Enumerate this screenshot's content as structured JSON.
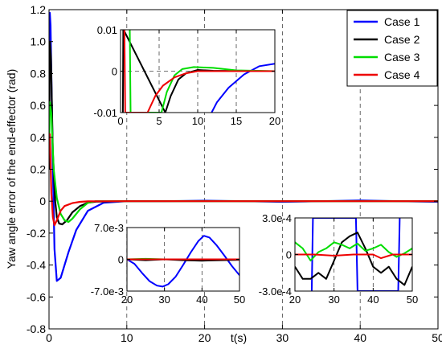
{
  "chart_data": [
    {
      "id": "main",
      "type": "line",
      "ylabel": "Yaw angle error of the end-effector (rad)",
      "xlabel": "t(s)",
      "xlim": [
        0,
        50
      ],
      "ylim": [
        -0.8,
        1.2
      ],
      "xticks": [
        0,
        10,
        20,
        30,
        40,
        50
      ],
      "xtick_labels": [
        "0",
        "10",
        "20",
        "30",
        "40",
        "50"
      ],
      "yticks": [
        -0.8,
        -0.6,
        -0.4,
        -0.2,
        0,
        0.2,
        0.4,
        0.6,
        0.8,
        1.0,
        1.2
      ],
      "ytick_labels": [
        "-0.8",
        "-0.6",
        "-0.4",
        "-0.2",
        "0",
        "0.2",
        "0.4",
        "0.6",
        "0.8",
        "1.0",
        "1.2"
      ],
      "grid": "dashed x only",
      "legend": "top-right",
      "series": [
        {
          "name": "Case 1",
          "color": "#0000ff",
          "x": [
            0,
            0.1,
            0.2,
            0.3,
            0.5,
            0.7,
            1.0,
            1.5,
            2.5,
            3.5,
            5,
            7,
            10,
            15,
            20,
            25,
            30,
            35,
            40,
            45,
            50
          ],
          "y": [
            0.3,
            1.18,
            1.1,
            0.8,
            0.2,
            -0.3,
            -0.5,
            -0.48,
            -0.32,
            -0.18,
            -0.06,
            -0.01,
            0,
            0,
            0.003,
            0,
            -0.004,
            0,
            0.004,
            0,
            -0.004
          ]
        },
        {
          "name": "Case 2",
          "color": "#000000",
          "x": [
            0,
            0.1,
            0.25,
            0.5,
            0.8,
            1.0,
            1.3,
            1.7,
            2.3,
            3,
            4,
            5,
            6,
            10,
            20,
            30,
            40,
            50
          ],
          "y": [
            0.2,
            1.0,
            0.9,
            0.3,
            0.0,
            -0.1,
            -0.14,
            -0.145,
            -0.12,
            -0.07,
            -0.03,
            -0.01,
            -0.003,
            0,
            0,
            0,
            0,
            0
          ]
        },
        {
          "name": "Case 3",
          "color": "#00dd00",
          "x": [
            0,
            0.1,
            0.3,
            0.6,
            1.0,
            1.5,
            2.0,
            2.5,
            3.0,
            4,
            5,
            6,
            10,
            20,
            30,
            40,
            50
          ],
          "y": [
            0.3,
            0.62,
            0.55,
            0.2,
            0.02,
            -0.08,
            -0.12,
            -0.13,
            -0.11,
            -0.05,
            -0.01,
            0,
            0,
            0,
            0,
            0,
            0
          ]
        },
        {
          "name": "Case 4",
          "color": "#ee0000",
          "x": [
            0,
            0.1,
            0.3,
            0.5,
            0.7,
            1.0,
            1.5,
            2,
            3,
            4,
            5,
            10,
            20,
            30,
            40,
            50
          ],
          "y": [
            0.4,
            0.42,
            0.05,
            -0.1,
            -0.15,
            -0.12,
            -0.06,
            -0.03,
            -0.012,
            -0.004,
            -0.001,
            0,
            0,
            0,
            0,
            0
          ]
        }
      ]
    },
    {
      "id": "inset_top",
      "type": "line",
      "xlim": [
        0,
        20
      ],
      "ylim": [
        -0.01,
        0.01
      ],
      "xticks": [
        0,
        5,
        10,
        15,
        20
      ],
      "xtick_labels": [
        "0",
        "5",
        "10",
        "15",
        "20"
      ],
      "yticks": [
        -0.01,
        0,
        0.01
      ],
      "ytick_labels": [
        "-0.01",
        "0",
        "0.01"
      ],
      "grid": "dashed",
      "series": [
        {
          "name": "Case 1",
          "color": "#0000ff",
          "x": [
            11.8,
            12.5,
            14,
            16,
            18,
            20
          ],
          "y": [
            -0.01,
            -0.0075,
            -0.004,
            -0.0008,
            0.0012,
            0.0018
          ]
        },
        {
          "name": "Case 2",
          "color": "#000000",
          "x": [
            0.3,
            0.35,
            0.4,
            5.8,
            6.5,
            7.5,
            8.5,
            10,
            12,
            20
          ],
          "y": [
            -0.01,
            0.01,
            0.01,
            -0.01,
            -0.006,
            -0.002,
            -0.0005,
            0.0003,
            0.0001,
            0
          ]
        },
        {
          "name": "Case 3",
          "color": "#00dd00",
          "x": [
            1.2,
            1.3,
            1.4,
            5.3,
            6,
            7,
            8,
            9.5,
            12,
            15,
            20
          ],
          "y": [
            0.01,
            -0.01,
            -0.01,
            -0.01,
            -0.005,
            -0.001,
            0.0005,
            0.001,
            0.0008,
            0.0002,
            0
          ]
        },
        {
          "name": "Case 4",
          "color": "#ee0000",
          "x": [
            0.5,
            0.6,
            0.7,
            3.5,
            4.5,
            5.5,
            7,
            8.5,
            10,
            12,
            20
          ],
          "y": [
            0.01,
            -0.01,
            -0.01,
            -0.01,
            -0.006,
            -0.0035,
            -0.0015,
            -0.0005,
            0,
            0,
            0
          ]
        }
      ]
    },
    {
      "id": "inset_mid",
      "type": "line",
      "xlim": [
        20,
        50
      ],
      "ylim": [
        -0.007,
        0.007
      ],
      "xticks": [
        20,
        30,
        40,
        50
      ],
      "xtick_labels": [
        "20",
        "30",
        "40",
        "50"
      ],
      "yticks": [
        -0.007,
        0,
        0.007
      ],
      "ytick_labels": [
        "-7.0e-3",
        "0",
        "7.0e-3"
      ],
      "grid": "dashed x only",
      "series": [
        {
          "name": "Case 1",
          "color": "#0000ff",
          "x": [
            20,
            22,
            24,
            26,
            28,
            29.5,
            31,
            33,
            35,
            37,
            39,
            40.5,
            42,
            44,
            46,
            48,
            50
          ],
          "y": [
            0,
            -0.001,
            -0.003,
            -0.0048,
            -0.0058,
            -0.006,
            -0.0055,
            -0.0038,
            -0.0012,
            0.0015,
            0.004,
            0.0052,
            0.0048,
            0.003,
            0.0008,
            -0.0015,
            -0.0035
          ]
        },
        {
          "name": "Case 2",
          "color": "#000000",
          "x": [
            20,
            25,
            30,
            35,
            40,
            45,
            50
          ],
          "y": [
            0,
            -0.0002,
            0,
            -0.0002,
            -0.0003,
            -0.0002,
            -0.0001
          ]
        },
        {
          "name": "Case 3",
          "color": "#00dd00",
          "x": [
            20,
            25,
            30,
            35,
            40,
            45,
            50
          ],
          "y": [
            0,
            0.0001,
            0,
            0,
            0,
            0,
            0
          ]
        },
        {
          "name": "Case 4",
          "color": "#ee0000",
          "x": [
            20,
            25,
            30,
            35,
            40,
            45,
            50
          ],
          "y": [
            0,
            0,
            0,
            0,
            0,
            0,
            0
          ]
        }
      ]
    },
    {
      "id": "inset_right",
      "type": "line",
      "xlim": [
        20,
        50
      ],
      "ylim": [
        -0.0003,
        0.0003
      ],
      "xticks": [
        20,
        30,
        40,
        50
      ],
      "xtick_labels": [
        "20",
        "30",
        "40",
        "50"
      ],
      "yticks": [
        -0.0003,
        0,
        0.0003
      ],
      "ytick_labels": [
        "-3.0e-4",
        "0",
        "3.0e-4"
      ],
      "grid": "dashed x only",
      "series": [
        {
          "name": "Case 1",
          "color": "#0000ff",
          "x": [
            24.3,
            24.6,
            35.6,
            36.0,
            46.4,
            46.8
          ],
          "y": [
            -0.0003,
            0.0003,
            0.0003,
            -0.0003,
            -0.0003,
            0.0003
          ]
        },
        {
          "name": "Case 2",
          "color": "#000000",
          "x": [
            20,
            22,
            24,
            26,
            28,
            30,
            32,
            34,
            36,
            38,
            40,
            42,
            44,
            46,
            48,
            50
          ],
          "y": [
            -0.0001,
            -0.0002,
            -0.0002,
            -0.00015,
            -0.0002,
            -5e-05,
            0.0001,
            0.00015,
            0.00018,
            5e-05,
            -0.0001,
            -0.00015,
            -0.0001,
            -0.0002,
            -0.00025,
            -0.0001
          ]
        },
        {
          "name": "Case 3",
          "color": "#00dd00",
          "x": [
            20,
            22,
            24,
            26,
            28,
            30,
            32,
            34,
            36,
            38,
            40,
            42,
            44,
            46,
            48,
            50
          ],
          "y": [
            0.0001,
            5e-05,
            -5e-05,
            2e-05,
            5e-05,
            0.0001,
            8e-05,
            5e-05,
            9e-05,
            3e-05,
            5e-05,
            8e-05,
            2e-05,
            -2e-05,
            1e-05,
            5e-05
          ]
        },
        {
          "name": "Case 4",
          "color": "#ee0000",
          "x": [
            20,
            25,
            30,
            35,
            40,
            42,
            45,
            50
          ],
          "y": [
            0,
            0,
            -1e-05,
            0,
            0,
            -3e-05,
            0,
            0
          ]
        }
      ]
    }
  ]
}
